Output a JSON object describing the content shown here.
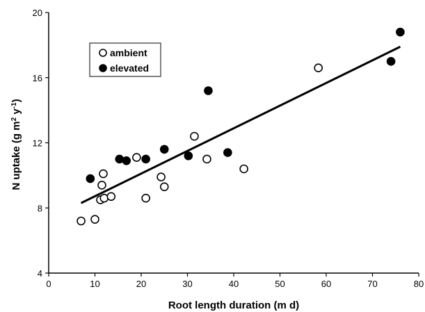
{
  "chart_data": {
    "type": "scatter",
    "xlabel": "Root length duration (m d)",
    "ylabel_parts": [
      "N uptake (g m",
      "2",
      " y",
      "-1",
      ")"
    ],
    "xlim": [
      0,
      80
    ],
    "ylim": [
      4,
      20
    ],
    "x_ticks": [
      0,
      10,
      20,
      30,
      40,
      50,
      60,
      70,
      80
    ],
    "y_ticks": [
      4,
      8,
      12,
      16,
      20
    ],
    "grid": false,
    "legend_position": "top-left",
    "series": [
      {
        "name": "ambient",
        "marker": "open-circle",
        "points": [
          {
            "x": 7,
            "y": 7.2
          },
          {
            "x": 10,
            "y": 7.3
          },
          {
            "x": 11.2,
            "y": 8.5
          },
          {
            "x": 11.5,
            "y": 9.4
          },
          {
            "x": 11.8,
            "y": 10.1
          },
          {
            "x": 12,
            "y": 8.6
          },
          {
            "x": 13.5,
            "y": 8.7
          },
          {
            "x": 19,
            "y": 11.1
          },
          {
            "x": 21,
            "y": 8.6
          },
          {
            "x": 24.3,
            "y": 9.9
          },
          {
            "x": 25,
            "y": 9.3
          },
          {
            "x": 31.5,
            "y": 12.4
          },
          {
            "x": 34.2,
            "y": 11
          },
          {
            "x": 42.2,
            "y": 10.4
          },
          {
            "x": 58.3,
            "y": 16.6
          }
        ]
      },
      {
        "name": "elevated",
        "marker": "filled-circle",
        "points": [
          {
            "x": 9,
            "y": 9.8
          },
          {
            "x": 15.3,
            "y": 11
          },
          {
            "x": 16.8,
            "y": 10.9
          },
          {
            "x": 21,
            "y": 11
          },
          {
            "x": 25,
            "y": 11.6
          },
          {
            "x": 30.2,
            "y": 11.2
          },
          {
            "x": 34.5,
            "y": 15.2
          },
          {
            "x": 38.7,
            "y": 11.4
          },
          {
            "x": 74,
            "y": 17
          },
          {
            "x": 76,
            "y": 18.8
          }
        ]
      }
    ],
    "trendline": {
      "x": [
        7,
        76
      ],
      "y": [
        8.3,
        17.9
      ]
    }
  },
  "colors": {
    "axis": "#000000",
    "marker_fill_ambient": "#ffffff",
    "marker_fill_elevated": "#000000",
    "line": "#000000"
  }
}
